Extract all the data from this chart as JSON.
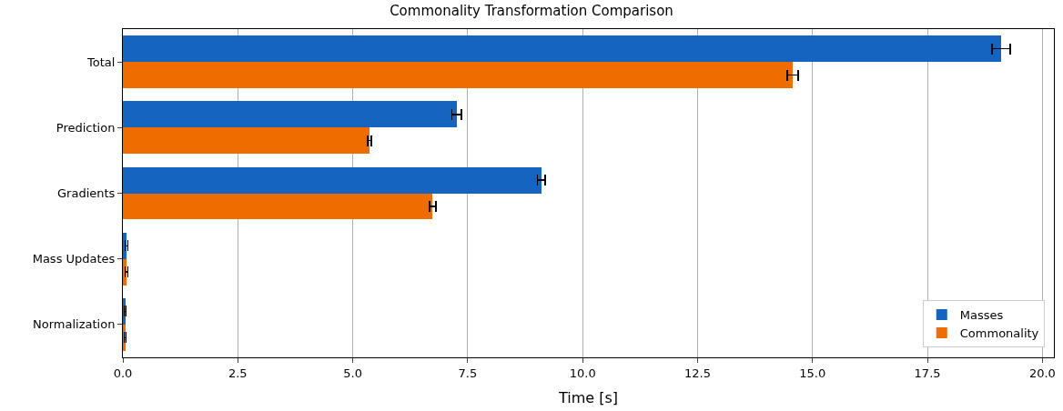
{
  "chart_data": {
    "type": "bar",
    "orientation": "horizontal",
    "title": "Commonality Transformation Comparison",
    "xlabel": "Time [s]",
    "categories": [
      "Total",
      "Prediction",
      "Gradients",
      "Mass Updates",
      "Normalization"
    ],
    "series": [
      {
        "name": "Masses",
        "color": "#1565c0",
        "values": [
          19.1,
          7.26,
          9.1,
          0.08,
          0.05
        ],
        "errors": [
          0.2,
          0.1,
          0.08,
          0.03,
          0.02
        ]
      },
      {
        "name": "Commonality",
        "color": "#ef6c00",
        "values": [
          14.57,
          5.36,
          6.74,
          0.08,
          0.05
        ],
        "errors": [
          0.12,
          0.04,
          0.07,
          0.03,
          0.02
        ]
      }
    ],
    "xlim": [
      0,
      20.25
    ],
    "xticks": [
      {
        "value": 0,
        "label": "0.0"
      },
      2.5,
      {
        "value": 5,
        "label": "5.0"
      },
      7.5,
      {
        "value": 10,
        "label": "10.0"
      },
      12.5,
      {
        "value": 15,
        "label": "15.0"
      },
      17.5,
      {
        "value": 20,
        "label": "20.0"
      }
    ],
    "grid": "x",
    "legend": "bottom right"
  }
}
